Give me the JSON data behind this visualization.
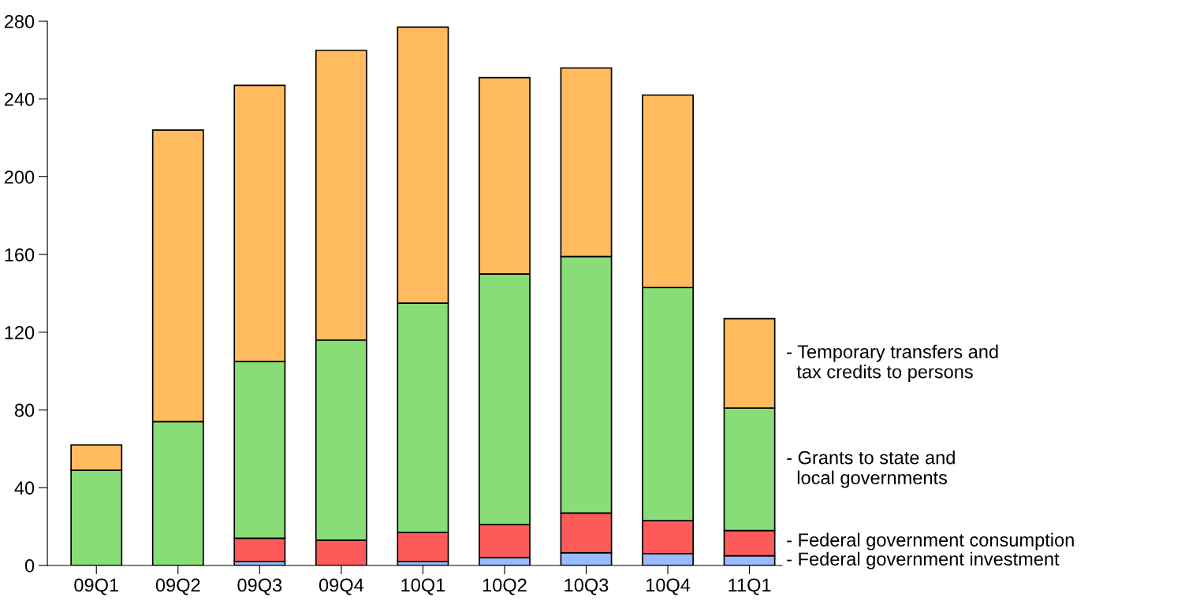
{
  "chart_data": {
    "type": "bar",
    "stacked": true,
    "categories": [
      "09Q1",
      "09Q2",
      "09Q3",
      "09Q4",
      "10Q1",
      "10Q2",
      "10Q3",
      "10Q4",
      "11Q1"
    ],
    "series": [
      {
        "name": "- Federal government investment",
        "color": "#99bbff",
        "values": [
          0,
          0,
          2,
          null,
          2,
          4,
          6.5,
          6,
          5
        ]
      },
      {
        "name": "- Federal government consumption",
        "color": "#ff5a5a",
        "values": [
          0,
          null,
          12,
          13,
          15,
          17,
          20.5,
          17,
          13
        ]
      },
      {
        "name": "- Grants to state and\n  local governments",
        "color": "#88dd77",
        "values": [
          49,
          74,
          91,
          103,
          118,
          129,
          132,
          120,
          63
        ]
      },
      {
        "name": "- Temporary transfers and\n  tax credits to persons",
        "color": "#ffbb5e",
        "values": [
          13,
          150,
          142,
          149,
          142,
          101,
          97,
          99,
          46
        ]
      }
    ],
    "ylim": [
      0,
      280
    ],
    "yticks": [
      0,
      40,
      80,
      120,
      160,
      200,
      240,
      280
    ],
    "grid": false,
    "legend": "right"
  }
}
